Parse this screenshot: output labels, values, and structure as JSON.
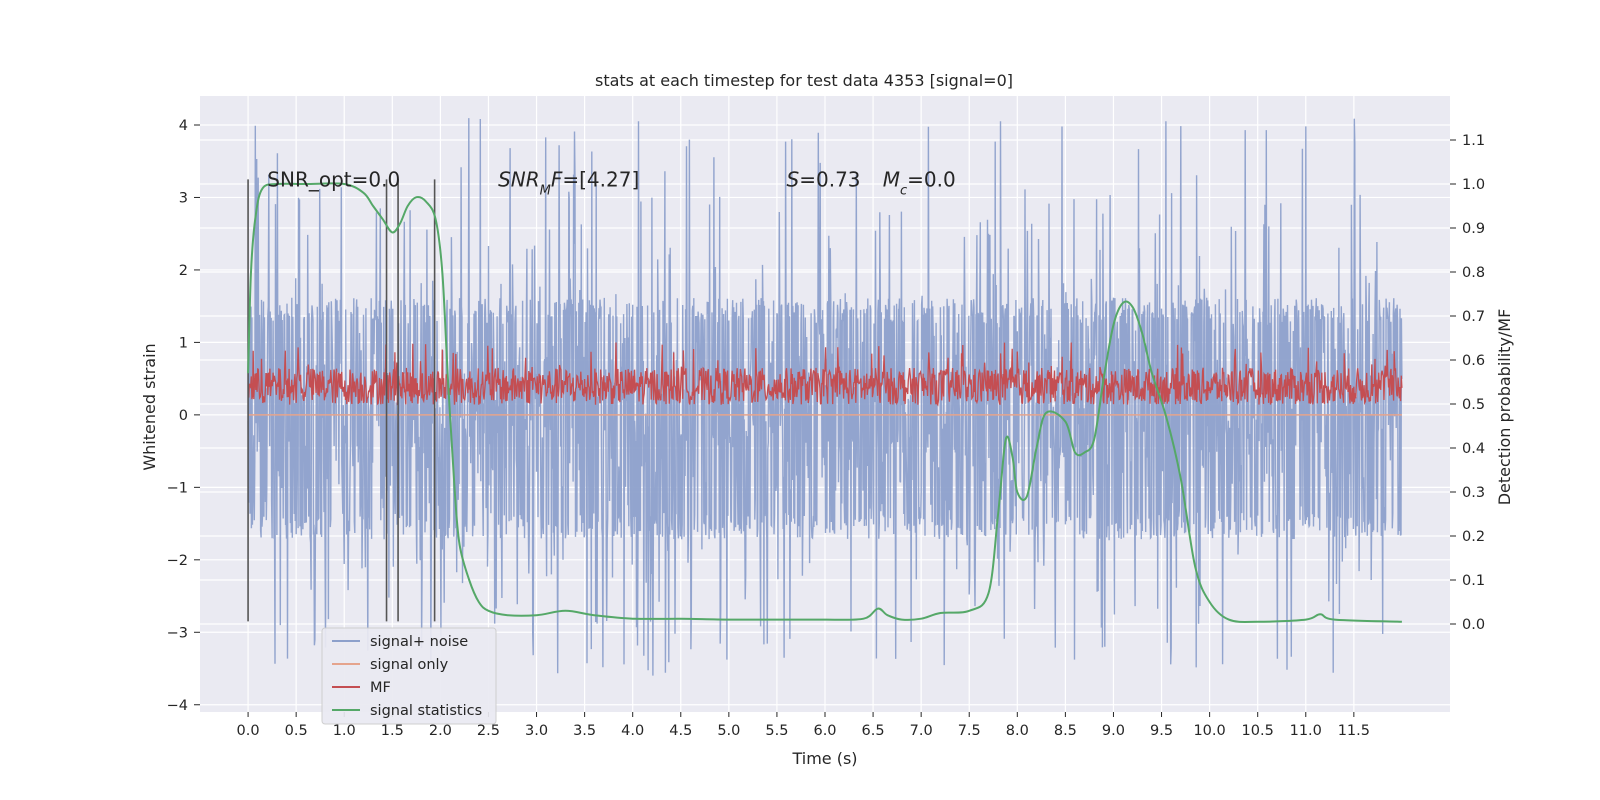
{
  "chart_data": {
    "type": "line",
    "title": "stats at each timestep for test data 4353 [signal=0]",
    "xlabel": "Time (s)",
    "ylabel": "Whitened strain",
    "ylabel_right": "Detection probability/MF",
    "xlim": [
      -0.5,
      12.5
    ],
    "ylim": [
      -4.1,
      4.4
    ],
    "ylim_right": [
      -0.2,
      1.2
    ],
    "grid": true,
    "legend_position": "lower-left",
    "x_ticks": [
      "0.0",
      "0.5",
      "1.0",
      "1.5",
      "2.0",
      "2.5",
      "3.0",
      "3.5",
      "4.0",
      "4.5",
      "5.0",
      "5.5",
      "6.0",
      "6.5",
      "7.0",
      "7.5",
      "8.0",
      "8.5",
      "9.0",
      "9.5",
      "10.0",
      "10.5",
      "11.0",
      "11.5"
    ],
    "y_ticks": [
      "4",
      "3",
      "2",
      "1",
      "0",
      "−1",
      "−2",
      "−3",
      "−4"
    ],
    "y_ticks_right": [
      "1.1",
      "1.0",
      "0.9",
      "0.8",
      "0.7",
      "0.6",
      "0.5",
      "0.4",
      "0.3",
      "0.2",
      "0.1",
      "0.0"
    ],
    "annotations": [
      {
        "id": "snr-opt",
        "x": 0.2,
        "y": 3.25,
        "text": "SNR_opt=0.0"
      },
      {
        "id": "snr-mf",
        "x": 2.6,
        "y": 3.25,
        "italic": "SNR",
        "sub": "M",
        "italic2": "F",
        "rest": "=[4.27]"
      },
      {
        "id": "stat-s",
        "x": 5.6,
        "y": 3.25,
        "italic": "S",
        "rest": "=0.73"
      },
      {
        "id": "stat-mc",
        "x": 6.6,
        "y": 3.25,
        "italic": "M",
        "sub": "c",
        "rest": "=0.0"
      }
    ],
    "vlines": [
      {
        "x": 0.0,
        "ymin": -2.85,
        "ymax": 3.25
      },
      {
        "x": 1.44,
        "ymin": -2.85,
        "ymax": 3.25
      },
      {
        "x": 1.56,
        "ymin": -2.85,
        "ymax": 3.25
      },
      {
        "x": 1.94,
        "ymin": -2.85,
        "ymax": 3.25
      }
    ],
    "series": [
      {
        "name": "signal+ noise",
        "color": "#8da0cb",
        "x_range": [
          0.0,
          12.0
        ],
        "y_band": [
          -1.5,
          1.4
        ],
        "y_extremes": [
          -3.6,
          4.1
        ],
        "axis": "left"
      },
      {
        "name": "signal only",
        "color": "#e5a48d",
        "x_range": [
          0.0,
          12.0
        ],
        "y_constant": 0.0,
        "axis": "left"
      },
      {
        "name": "MF",
        "color": "#c44e52",
        "x_range": [
          0.0,
          12.0
        ],
        "y_band": [
          0.05,
          0.65
        ],
        "y_extremes": [
          0.0,
          1.0
        ],
        "axis": "left"
      },
      {
        "name": "signal statistics",
        "color": "#55a868",
        "axis": "right",
        "x": [
          0.0,
          0.03,
          0.08,
          0.15,
          0.3,
          0.6,
          1.0,
          1.2,
          1.3,
          1.4,
          1.5,
          1.58,
          1.66,
          1.75,
          1.85,
          1.95,
          2.02,
          2.08,
          2.15,
          2.2,
          2.3,
          2.4,
          2.5,
          2.7,
          3.0,
          3.3,
          3.6,
          4.0,
          4.5,
          5.0,
          5.5,
          6.0,
          6.4,
          6.55,
          6.65,
          6.8,
          7.0,
          7.2,
          7.5,
          7.7,
          7.8,
          7.88,
          7.95,
          8.0,
          8.1,
          8.2,
          8.3,
          8.5,
          8.6,
          8.7,
          8.8,
          8.9,
          9.0,
          9.1,
          9.2,
          9.3,
          9.4,
          9.55,
          9.7,
          9.85,
          10.0,
          10.2,
          10.5,
          11.0,
          11.15,
          11.3,
          12.0
        ],
        "y": [
          0.57,
          0.8,
          0.93,
          0.99,
          1.0,
          1.0,
          1.0,
          0.98,
          0.95,
          0.92,
          0.89,
          0.91,
          0.95,
          0.97,
          0.96,
          0.92,
          0.8,
          0.55,
          0.3,
          0.18,
          0.1,
          0.05,
          0.03,
          0.02,
          0.02,
          0.03,
          0.02,
          0.012,
          0.012,
          0.01,
          0.01,
          0.01,
          0.012,
          0.035,
          0.02,
          0.01,
          0.012,
          0.025,
          0.03,
          0.07,
          0.25,
          0.42,
          0.38,
          0.3,
          0.29,
          0.4,
          0.48,
          0.46,
          0.39,
          0.39,
          0.42,
          0.56,
          0.68,
          0.73,
          0.72,
          0.66,
          0.57,
          0.47,
          0.33,
          0.13,
          0.05,
          0.01,
          0.005,
          0.01,
          0.022,
          0.01,
          0.005
        ]
      }
    ]
  }
}
